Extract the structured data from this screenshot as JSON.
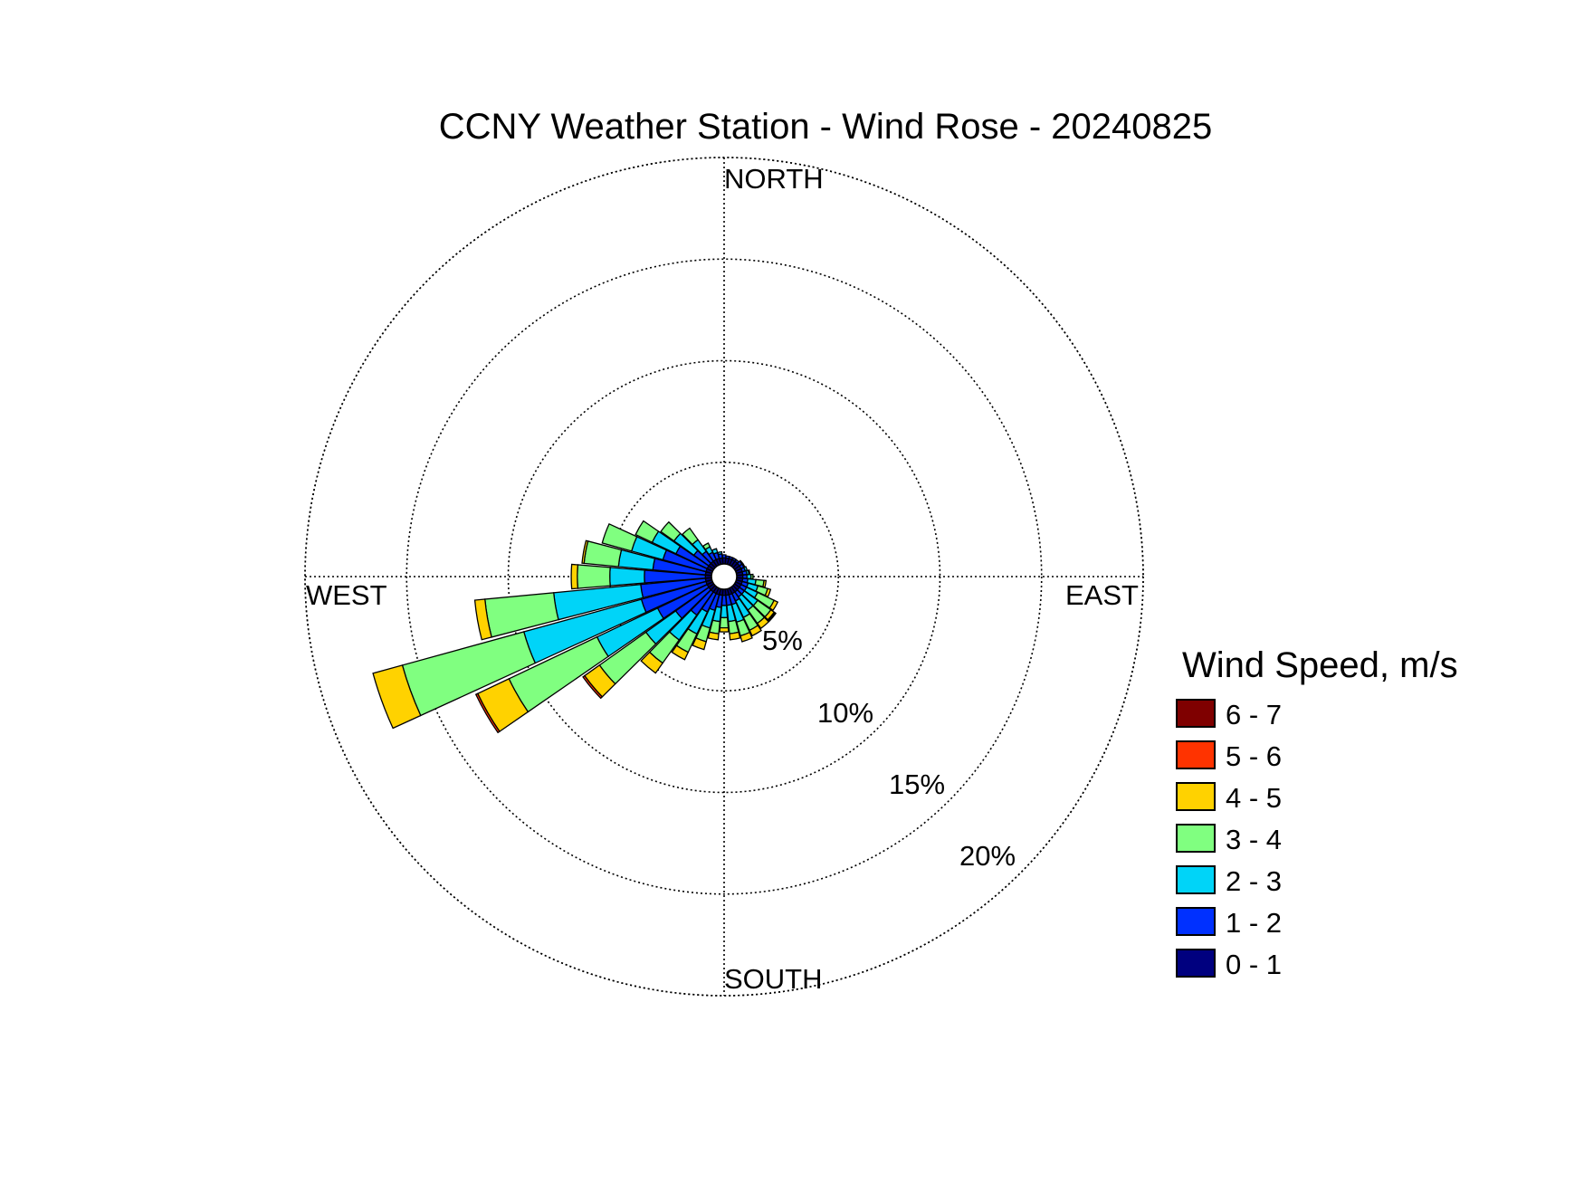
{
  "chart_data": {
    "type": "wind-rose",
    "title": "CCNY Weather Station - Wind Rose - 20240825",
    "direction_labels": {
      "north": "NORTH",
      "east": "EAST",
      "south": "SOUTH",
      "west": "WEST"
    },
    "radial_ticks": [
      {
        "value": 5,
        "label": "5%"
      },
      {
        "value": 10,
        "label": "10%"
      },
      {
        "value": 15,
        "label": "15%"
      },
      {
        "value": 20,
        "label": "20%"
      }
    ],
    "rmax": 20,
    "legend": {
      "title": "Wind Speed, m/s",
      "placement": "right",
      "bins": [
        {
          "label": "6 - 7",
          "color": "#7f0000"
        },
        {
          "label": "5 - 6",
          "color": "#ff3300"
        },
        {
          "label": "4 - 5",
          "color": "#ffd200"
        },
        {
          "label": "3 - 4",
          "color": "#80ff80"
        },
        {
          "label": "2 - 3",
          "color": "#00d4f8"
        },
        {
          "label": "1 - 2",
          "color": "#0030ff"
        },
        {
          "label": "0 - 1",
          "color": "#00007f"
        }
      ]
    },
    "speed_bins": [
      "0 - 1",
      "1 - 2",
      "2 - 3",
      "3 - 4",
      "4 - 5",
      "5 - 6",
      "6 - 7"
    ],
    "bin_width_deg": 10,
    "series": [
      {
        "direction_deg": 100,
        "values": [
          0.3,
          0.25,
          0.4,
          0.4,
          0.1,
          0.0,
          0.0
        ]
      },
      {
        "direction_deg": 110,
        "values": [
          0.3,
          0.3,
          0.5,
          0.5,
          0.15,
          0.0,
          0.0
        ]
      },
      {
        "direction_deg": 120,
        "values": [
          0.3,
          0.3,
          0.6,
          0.9,
          0.2,
          0.0,
          0.0
        ]
      },
      {
        "direction_deg": 130,
        "values": [
          0.3,
          0.3,
          0.8,
          0.8,
          0.2,
          0.05,
          0.05
        ]
      },
      {
        "direction_deg": 140,
        "values": [
          0.3,
          0.3,
          0.8,
          0.8,
          0.3,
          0.0,
          0.0
        ]
      },
      {
        "direction_deg": 150,
        "values": [
          0.3,
          0.4,
          0.9,
          0.7,
          0.3,
          0.0,
          0.0
        ]
      },
      {
        "direction_deg": 160,
        "values": [
          0.3,
          0.5,
          0.9,
          0.7,
          0.3,
          0.0,
          0.0
        ]
      },
      {
        "direction_deg": 170,
        "values": [
          0.3,
          0.5,
          0.8,
          0.6,
          0.3,
          0.0,
          0.0
        ]
      },
      {
        "direction_deg": 180,
        "values": [
          0.3,
          0.5,
          0.6,
          0.5,
          0.2,
          0.0,
          0.0
        ]
      },
      {
        "direction_deg": 190,
        "values": [
          0.3,
          0.6,
          0.7,
          0.6,
          0.3,
          0.0,
          0.0
        ]
      },
      {
        "direction_deg": 200,
        "values": [
          0.3,
          0.8,
          0.9,
          0.7,
          0.4,
          0.0,
          0.0
        ]
      },
      {
        "direction_deg": 210,
        "values": [
          0.3,
          1.0,
          1.2,
          1.0,
          0.4,
          0.0,
          0.0
        ]
      },
      {
        "direction_deg": 220,
        "values": [
          0.3,
          1.4,
          1.5,
          1.4,
          0.6,
          0.0,
          0.0
        ]
      },
      {
        "direction_deg": 230,
        "values": [
          0.3,
          2.0,
          1.8,
          2.8,
          0.9,
          0.1,
          0.0
        ]
      },
      {
        "direction_deg": 240,
        "values": [
          0.3,
          2.7,
          3.3,
          4.8,
          1.7,
          0.1,
          0.0
        ]
      },
      {
        "direction_deg": 250,
        "values": [
          0.3,
          3.3,
          6.0,
          6.2,
          1.5,
          0.0,
          0.0
        ]
      },
      {
        "direction_deg": 260,
        "values": [
          0.3,
          3.2,
          4.3,
          3.4,
          0.5,
          0.0,
          0.0
        ]
      },
      {
        "direction_deg": 270,
        "values": [
          0.3,
          3.0,
          1.7,
          1.6,
          0.3,
          0.0,
          0.0
        ]
      },
      {
        "direction_deg": 280,
        "values": [
          0.3,
          2.6,
          1.7,
          1.7,
          0.1,
          0.0,
          0.0
        ]
      },
      {
        "direction_deg": 290,
        "values": [
          0.3,
          2.2,
          1.6,
          1.5,
          0.0,
          0.0,
          0.0
        ]
      },
      {
        "direction_deg": 300,
        "values": [
          0.3,
          1.7,
          1.3,
          0.9,
          0.0,
          0.0,
          0.0
        ]
      },
      {
        "direction_deg": 310,
        "values": [
          0.3,
          0.9,
          1.2,
          0.8,
          0.0,
          0.0,
          0.0
        ]
      },
      {
        "direction_deg": 320,
        "values": [
          0.3,
          0.6,
          0.7,
          0.7,
          0.0,
          0.0,
          0.0
        ]
      },
      {
        "direction_deg": 330,
        "values": [
          0.3,
          0.4,
          0.3,
          0.2,
          0.0,
          0.0,
          0.0
        ]
      },
      {
        "direction_deg": 340,
        "values": [
          0.3,
          0.3,
          0.2,
          0.0,
          0.0,
          0.0,
          0.0
        ]
      },
      {
        "direction_deg": 350,
        "values": [
          0.3,
          0.2,
          0.1,
          0.0,
          0.0,
          0.0,
          0.0
        ]
      },
      {
        "direction_deg": 0,
        "values": [
          0.3,
          0.15,
          0.0,
          0.0,
          0.0,
          0.0,
          0.0
        ]
      },
      {
        "direction_deg": 10,
        "values": [
          0.3,
          0.1,
          0.0,
          0.0,
          0.0,
          0.0,
          0.0
        ]
      },
      {
        "direction_deg": 20,
        "values": [
          0.3,
          0.1,
          0.0,
          0.0,
          0.0,
          0.0,
          0.0
        ]
      },
      {
        "direction_deg": 30,
        "values": [
          0.3,
          0.1,
          0.0,
          0.0,
          0.0,
          0.0,
          0.0
        ]
      },
      {
        "direction_deg": 40,
        "values": [
          0.3,
          0.1,
          0.0,
          0.0,
          0.0,
          0.0,
          0.0
        ]
      },
      {
        "direction_deg": 50,
        "values": [
          0.3,
          0.15,
          0.05,
          0.0,
          0.0,
          0.0,
          0.0
        ]
      },
      {
        "direction_deg": 60,
        "values": [
          0.3,
          0.15,
          0.05,
          0.0,
          0.0,
          0.0,
          0.0
        ]
      },
      {
        "direction_deg": 70,
        "values": [
          0.3,
          0.15,
          0.1,
          0.0,
          0.0,
          0.0,
          0.0
        ]
      },
      {
        "direction_deg": 80,
        "values": [
          0.3,
          0.2,
          0.1,
          0.05,
          0.0,
          0.0,
          0.0
        ]
      },
      {
        "direction_deg": 90,
        "values": [
          0.3,
          0.2,
          0.2,
          0.1,
          0.0,
          0.0,
          0.0
        ]
      }
    ]
  }
}
